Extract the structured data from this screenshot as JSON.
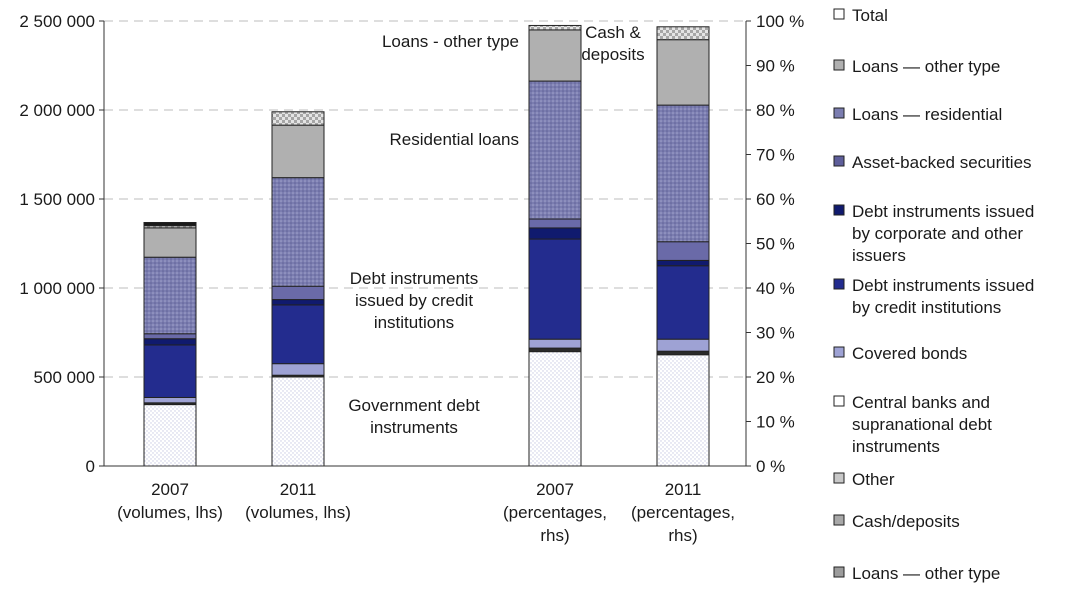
{
  "chart_data": {
    "type": "bar",
    "stacked": true,
    "grid": "horizontal dashed",
    "legend_position": "right",
    "categories": [
      [
        "2007",
        "(volumes, lhs)"
      ],
      [
        "2011",
        "(volumes, lhs)"
      ],
      [
        "2007",
        "(percentages,",
        "rhs)"
      ],
      [
        "2011",
        "(percentages,",
        "rhs)"
      ]
    ],
    "left_axis": {
      "ylim": [
        0,
        2500000
      ],
      "ticks": [
        {
          "value": 0,
          "label": "0"
        },
        {
          "value": 500000,
          "label": "500 000"
        },
        {
          "value": 1000000,
          "label": "1 000 000"
        },
        {
          "value": 1500000,
          "label": "1 500 000"
        },
        {
          "value": 2000000,
          "label": "2 000 000"
        },
        {
          "value": 2500000,
          "label": "2 500 000"
        }
      ]
    },
    "right_axis": {
      "ylim": [
        0,
        100
      ],
      "ticks": [
        {
          "value": 0,
          "label": "0 %"
        },
        {
          "value": 10,
          "label": "10 %"
        },
        {
          "value": 20,
          "label": "20 %"
        },
        {
          "value": 30,
          "label": "30 %"
        },
        {
          "value": 40,
          "label": "40 %"
        },
        {
          "value": 50,
          "label": "50 %"
        },
        {
          "value": 60,
          "label": "60 %"
        },
        {
          "value": 70,
          "label": "70 %"
        },
        {
          "value": 80,
          "label": "80 %"
        },
        {
          "value": 90,
          "label": "90 %"
        },
        {
          "value": 100,
          "label": "100 %"
        }
      ]
    },
    "series": [
      {
        "name": "Central banks and supranational debt instruments",
        "color": "#ffffff",
        "pattern": "dots-light",
        "values": [
          345000,
          500000,
          25.7,
          25.0
        ]
      },
      {
        "name": "Other",
        "color": "#2a2a2a",
        "values": [
          10000,
          10000,
          0.8,
          0.8
        ]
      },
      {
        "name": "Covered bonds",
        "color": "#9ea2d4",
        "values": [
          30000,
          65000,
          2.0,
          2.7
        ]
      },
      {
        "name": "Debt instruments issued by credit institutions",
        "color": "#232c8e",
        "values": [
          295000,
          330000,
          22.5,
          16.5
        ]
      },
      {
        "name": "Debt instruments issued by corporate and other issuers",
        "color": "#101a6e",
        "values": [
          35000,
          30000,
          2.5,
          1.2
        ]
      },
      {
        "name": "Asset-backed securities",
        "color": "#6a6aa8",
        "values": [
          28000,
          75000,
          2.0,
          4.2
        ]
      },
      {
        "name": "Loans — residential",
        "color": "#8486b8",
        "pattern": "dots-dark",
        "values": [
          430000,
          610000,
          31.0,
          30.7
        ]
      },
      {
        "name": "Loans — other type",
        "color": "#b0b0b0",
        "values": [
          165000,
          295000,
          11.5,
          14.7
        ]
      },
      {
        "name": "Cash/deposits",
        "color": "#cfcfcf",
        "pattern": "check",
        "values": [
          12000,
          75000,
          1.0,
          2.9
        ]
      },
      {
        "name": "Total",
        "color": "#1a1a1a",
        "values": [
          18000,
          0,
          0,
          0
        ]
      }
    ],
    "annotations": [
      {
        "text": [
          "Loans - other type"
        ],
        "anchor": "col3-left"
      },
      {
        "text": [
          "Cash &",
          "deposits"
        ],
        "anchor": "col3-right"
      },
      {
        "text": [
          "Residential loans"
        ],
        "anchor": "col3-left"
      },
      {
        "text": [
          "Debt instruments",
          "issued by credit",
          "institutions"
        ],
        "anchor": "col3-left"
      },
      {
        "text": [
          "Government debt",
          "instruments"
        ],
        "anchor": "col3-left"
      }
    ],
    "legend": [
      {
        "label": [
          "Total"
        ],
        "color": "#ffffff"
      },
      {
        "label": [
          "Loans — other type"
        ],
        "color": "#b0b0b0"
      },
      {
        "label": [
          "Loans — residential"
        ],
        "color": "#7b7db0"
      },
      {
        "label": [
          "Asset-backed securities"
        ],
        "color": "#5e5e9a"
      },
      {
        "label": [
          "Debt instruments issued",
          "by corporate and other",
          "issuers"
        ],
        "color": "#101a6e"
      },
      {
        "label": [
          "Debt instruments issued",
          "by credit institutions"
        ],
        "color": "#232c8e"
      },
      {
        "label": [
          "Covered bonds"
        ],
        "color": "#9ea2d4"
      },
      {
        "label": [
          "Central banks and",
          "supranational debt",
          "instruments"
        ],
        "color": "#ffffff"
      },
      {
        "label": [
          "Other"
        ],
        "color": "#c8c8c8"
      },
      {
        "label": [
          "Cash/deposits"
        ],
        "color": "#a8a8a8"
      },
      {
        "label": [
          "Loans — other type"
        ],
        "color": "#9c9c9c"
      }
    ]
  }
}
